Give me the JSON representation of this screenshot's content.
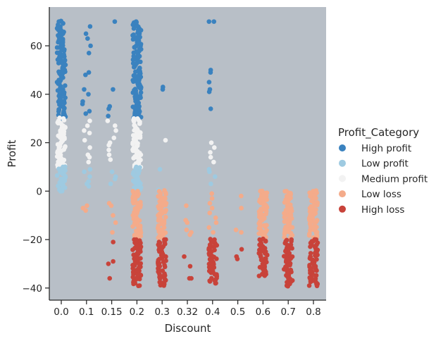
{
  "chart_data": {
    "type": "scatter",
    "subtype": "strip plot (categorical x, jittered points)",
    "xlabel": "Discount",
    "ylabel": "Profit",
    "categories": [
      "0.0",
      "0.1",
      "0.15",
      "0.2",
      "0.3",
      "0.32",
      "0.4",
      "0.5",
      "0.6",
      "0.7",
      "0.8"
    ],
    "yticks": [
      -40,
      -20,
      0,
      20,
      40,
      60
    ],
    "ylim": [
      -45,
      76
    ],
    "grid": false,
    "background_color": "#b8bfc7",
    "legend": {
      "title": "Profit_Category",
      "placement": "center-right, outside plot",
      "entries": [
        {
          "label": "High profit",
          "color": "#3a82bf"
        },
        {
          "label": "Low profit",
          "color": "#9ecae1"
        },
        {
          "label": "Medium profit",
          "color": "#f2f2f2"
        },
        {
          "label": "Low loss",
          "color": "#f4ab8a"
        },
        {
          "label": "High loss",
          "color": "#c8433a"
        }
      ]
    },
    "series": [
      {
        "name": "High profit",
        "ranges": [
          {
            "category": "0.0",
            "y_range": [
              30,
              70
            ]
          },
          {
            "category": "0.2",
            "y_range": [
              30,
              70
            ]
          }
        ],
        "points": [
          {
            "category": "0.1",
            "y": 68
          },
          {
            "category": "0.1",
            "y": 65
          },
          {
            "category": "0.1",
            "y": 63
          },
          {
            "category": "0.1",
            "y": 60
          },
          {
            "category": "0.1",
            "y": 57
          },
          {
            "category": "0.1",
            "y": 49
          },
          {
            "category": "0.1",
            "y": 48
          },
          {
            "category": "0.1",
            "y": 42
          },
          {
            "category": "0.1",
            "y": 40
          },
          {
            "category": "0.1",
            "y": 37
          },
          {
            "category": "0.1",
            "y": 36
          },
          {
            "category": "0.1",
            "y": 33
          },
          {
            "category": "0.1",
            "y": 32
          },
          {
            "category": "0.15",
            "y": 70
          },
          {
            "category": "0.15",
            "y": 42
          },
          {
            "category": "0.15",
            "y": 35
          },
          {
            "category": "0.15",
            "y": 34
          },
          {
            "category": "0.15",
            "y": 31
          },
          {
            "category": "0.3",
            "y": 43
          },
          {
            "category": "0.3",
            "y": 42
          },
          {
            "category": "0.4",
            "y": 70
          },
          {
            "category": "0.4",
            "y": 70
          },
          {
            "category": "0.4",
            "y": 50
          },
          {
            "category": "0.4",
            "y": 49
          },
          {
            "category": "0.4",
            "y": 45
          },
          {
            "category": "0.4",
            "y": 42
          },
          {
            "category": "0.4",
            "y": 41
          },
          {
            "category": "0.4",
            "y": 34
          }
        ]
      },
      {
        "name": "Medium profit",
        "ranges": [
          {
            "category": "0.0",
            "y_range": [
              10,
              30
            ]
          },
          {
            "category": "0.2",
            "y_range": [
              10,
              30
            ]
          }
        ],
        "points": [
          {
            "category": "0.1",
            "y": 29
          },
          {
            "category": "0.1",
            "y": 27
          },
          {
            "category": "0.1",
            "y": 25
          },
          {
            "category": "0.1",
            "y": 24
          },
          {
            "category": "0.1",
            "y": 21
          },
          {
            "category": "0.1",
            "y": 18
          },
          {
            "category": "0.1",
            "y": 15
          },
          {
            "category": "0.1",
            "y": 14
          },
          {
            "category": "0.1",
            "y": 12
          },
          {
            "category": "0.15",
            "y": 29
          },
          {
            "category": "0.15",
            "y": 27
          },
          {
            "category": "0.15",
            "y": 25
          },
          {
            "category": "0.15",
            "y": 22
          },
          {
            "category": "0.15",
            "y": 20
          },
          {
            "category": "0.15",
            "y": 19
          },
          {
            "category": "0.15",
            "y": 17
          },
          {
            "category": "0.15",
            "y": 15
          },
          {
            "category": "0.15",
            "y": 13
          },
          {
            "category": "0.3",
            "y": 21
          },
          {
            "category": "0.4",
            "y": 20
          },
          {
            "category": "0.4",
            "y": 18
          },
          {
            "category": "0.4",
            "y": 16
          },
          {
            "category": "0.4",
            "y": 14
          },
          {
            "category": "0.4",
            "y": 12
          }
        ]
      },
      {
        "name": "Low profit",
        "ranges": [
          {
            "category": "0.0",
            "y_range": [
              0,
              10
            ]
          },
          {
            "category": "0.2",
            "y_range": [
              0,
              10
            ]
          }
        ],
        "points": [
          {
            "category": "0.1",
            "y": 9
          },
          {
            "category": "0.1",
            "y": 8
          },
          {
            "category": "0.1",
            "y": 6
          },
          {
            "category": "0.1",
            "y": 4
          },
          {
            "category": "0.1",
            "y": 3
          },
          {
            "category": "0.1",
            "y": 2
          },
          {
            "category": "0.15",
            "y": 8
          },
          {
            "category": "0.15",
            "y": 6
          },
          {
            "category": "0.15",
            "y": 5
          },
          {
            "category": "0.15",
            "y": 3
          },
          {
            "category": "0.3",
            "y": 9
          },
          {
            "category": "0.3",
            "y": 0.5
          },
          {
            "category": "0.4",
            "y": 9
          },
          {
            "category": "0.4",
            "y": 8
          },
          {
            "category": "0.4",
            "y": 6
          },
          {
            "category": "0.4",
            "y": 3
          }
        ]
      },
      {
        "name": "Low loss",
        "ranges": [
          {
            "category": "0.2",
            "y_range": [
              -20,
              0
            ]
          },
          {
            "category": "0.3",
            "y_range": [
              -20,
              0
            ]
          },
          {
            "category": "0.6",
            "y_range": [
              -19,
              0
            ]
          },
          {
            "category": "0.7",
            "y_range": [
              -19,
              0
            ]
          },
          {
            "category": "0.8",
            "y_range": [
              -19,
              0
            ]
          }
        ],
        "points": [
          {
            "category": "0.1",
            "y": -6
          },
          {
            "category": "0.1",
            "y": -7
          },
          {
            "category": "0.1",
            "y": -8
          },
          {
            "category": "0.15",
            "y": -5
          },
          {
            "category": "0.15",
            "y": -6
          },
          {
            "category": "0.15",
            "y": -10
          },
          {
            "category": "0.15",
            "y": -13
          },
          {
            "category": "0.15",
            "y": -17
          },
          {
            "category": "0.32",
            "y": -6
          },
          {
            "category": "0.32",
            "y": -12
          },
          {
            "category": "0.32",
            "y": -13
          },
          {
            "category": "0.32",
            "y": -16
          },
          {
            "category": "0.32",
            "y": -17
          },
          {
            "category": "0.32",
            "y": -18
          },
          {
            "category": "0.4",
            "y": -1
          },
          {
            "category": "0.4",
            "y": -3
          },
          {
            "category": "0.4",
            "y": -5
          },
          {
            "category": "0.4",
            "y": -7
          },
          {
            "category": "0.4",
            "y": -9
          },
          {
            "category": "0.4",
            "y": -11
          },
          {
            "category": "0.4",
            "y": -13
          },
          {
            "category": "0.4",
            "y": -15
          },
          {
            "category": "0.4",
            "y": -17
          },
          {
            "category": "0.5",
            "y": -2
          },
          {
            "category": "0.5",
            "y": -7
          },
          {
            "category": "0.5",
            "y": -16
          },
          {
            "category": "0.5",
            "y": -17
          }
        ]
      },
      {
        "name": "High loss",
        "ranges": [
          {
            "category": "0.2",
            "y_range": [
              -39,
              -20
            ]
          },
          {
            "category": "0.3",
            "y_range": [
              -39,
              -20
            ]
          },
          {
            "category": "0.4",
            "y_range": [
              -38,
              -20
            ]
          },
          {
            "category": "0.6",
            "y_range": [
              -35,
              -20
            ]
          },
          {
            "category": "0.7",
            "y_range": [
              -39,
              -20
            ]
          },
          {
            "category": "0.8",
            "y_range": [
              -39,
              -20
            ]
          }
        ],
        "points": [
          {
            "category": "0.15",
            "y": -21
          },
          {
            "category": "0.15",
            "y": -29
          },
          {
            "category": "0.15",
            "y": -30
          },
          {
            "category": "0.15",
            "y": -36
          },
          {
            "category": "0.32",
            "y": -27
          },
          {
            "category": "0.32",
            "y": -31
          },
          {
            "category": "0.32",
            "y": -36
          },
          {
            "category": "0.32",
            "y": -36
          },
          {
            "category": "0.5",
            "y": -24
          },
          {
            "category": "0.5",
            "y": -27
          },
          {
            "category": "0.5",
            "y": -28
          }
        ]
      }
    ]
  }
}
